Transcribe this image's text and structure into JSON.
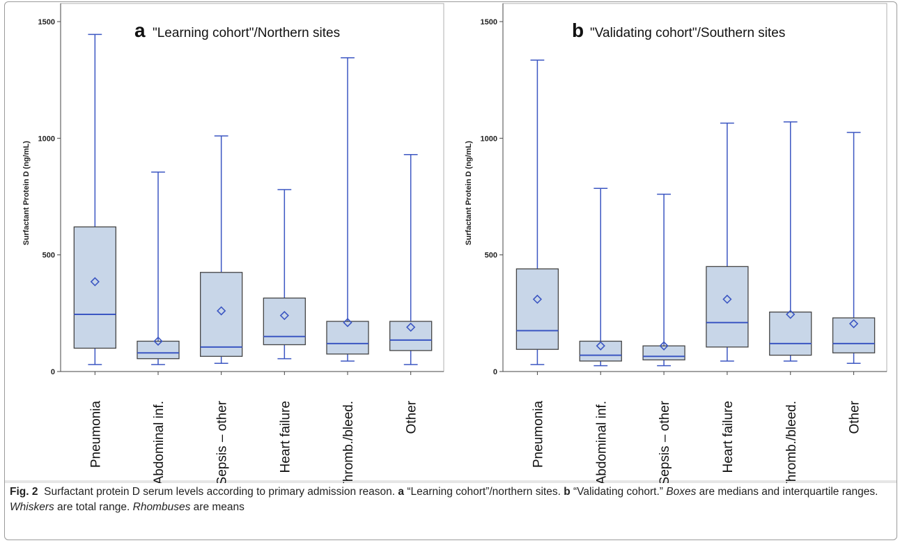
{
  "colors": {
    "box_fill": "#c8d6e8",
    "box_stroke": "#444444",
    "whisker": "#3b56c2",
    "median": "#3b56c2",
    "mean_marker": "#3b56c2",
    "axis": "#444444",
    "background": "#ffffff",
    "caption_band": "#e6e6e6"
  },
  "chart_data": [
    {
      "type": "boxplot",
      "panel_letter": "a",
      "title": "\"Learning cohort\"/Northern  sites",
      "ylabel": "Surfactant Protein D (ng/mL)",
      "ylim": [
        0,
        1500
      ],
      "yticks": [
        "0",
        "500",
        "1000",
        "1500"
      ],
      "grid": false,
      "categories": [
        "Pneumonia",
        "Abdominal inf.",
        "Sepsis – other",
        "Heart failure",
        "Thromb./bleed.",
        "Other"
      ],
      "min": [
        30,
        30,
        35,
        55,
        45,
        30
      ],
      "q1": [
        100,
        55,
        65,
        115,
        75,
        90
      ],
      "median": [
        245,
        80,
        105,
        150,
        120,
        135
      ],
      "q3": [
        620,
        130,
        425,
        315,
        215,
        215
      ],
      "max": [
        1445,
        855,
        1010,
        780,
        1345,
        930
      ],
      "mean": [
        385,
        130,
        260,
        240,
        210,
        190
      ]
    },
    {
      "type": "boxplot",
      "panel_letter": "b",
      "title": "\"Validating cohort\"/Southern  sites",
      "ylabel": "Surfactant Protein D (ng/mL)",
      "ylim": [
        0,
        1500
      ],
      "yticks": [
        "0",
        "500",
        "1000",
        "1500"
      ],
      "grid": false,
      "categories": [
        "Pneumonia",
        "Abdominal inf.",
        "Sepsis – other",
        "Heart failure",
        "Thromb./bleed.",
        "Other"
      ],
      "min": [
        30,
        25,
        25,
        45,
        45,
        35
      ],
      "q1": [
        95,
        45,
        50,
        105,
        70,
        80
      ],
      "median": [
        175,
        70,
        65,
        210,
        120,
        120
      ],
      "q3": [
        440,
        130,
        110,
        450,
        255,
        230
      ],
      "max": [
        1335,
        785,
        760,
        1065,
        1070,
        1025
      ],
      "mean": [
        310,
        110,
        110,
        310,
        245,
        205
      ]
    }
  ],
  "caption": {
    "fig_label": "Fig. 2",
    "text_main": "Surfactant protein D serum levels according to primary admission reason.",
    "a_letter": "a",
    "a_text": "“Learning cohort”/northern sites.",
    "b_letter": "b",
    "b_text": "“Validating cohort.”",
    "boxes_word": "Boxes",
    "boxes_text": "are medians and interquartile ranges.",
    "whiskers_word": "Whiskers",
    "whiskers_text": "are total range.",
    "rhombuses_word": "Rhombuses",
    "rhombuses_text": "are means"
  }
}
